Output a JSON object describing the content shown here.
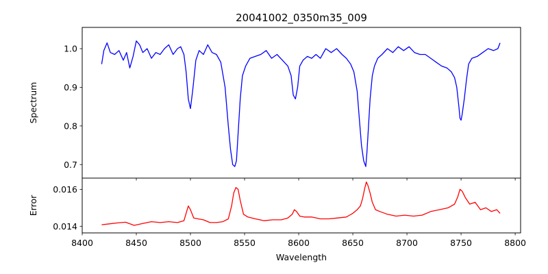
{
  "chart_data": [
    {
      "type": "line",
      "title": "20041002_0350m35_009",
      "xlabel": "",
      "ylabel": "Spectrum",
      "xlim": [
        8400,
        8805
      ],
      "ylim": [
        0.665,
        1.055
      ],
      "xticks": [
        8400,
        8450,
        8500,
        8550,
        8600,
        8650,
        8700,
        8750,
        8800
      ],
      "yticks": [
        0.7,
        0.8,
        0.9,
        1.0
      ],
      "ytick_labels": [
        "0.7",
        "0.8",
        "0.9",
        "1.0"
      ],
      "color": "#0000ff",
      "series": [
        {
          "x": [
            8418,
            8420,
            8423,
            8426,
            8430,
            8434,
            8438,
            8441,
            8444,
            8447,
            8450,
            8453,
            8456,
            8460,
            8464,
            8468,
            8472,
            8476,
            8480,
            8484,
            8488,
            8491,
            8494,
            8496,
            8498,
            8500,
            8502,
            8505,
            8508,
            8512,
            8516,
            8520,
            8524,
            8528,
            8532,
            8535,
            8537,
            8539,
            8541,
            8542.5,
            8544,
            8546,
            8548,
            8551,
            8555,
            8560,
            8565,
            8570,
            8575,
            8580,
            8585,
            8590,
            8593,
            8595,
            8597,
            8599,
            8601,
            8604,
            8608,
            8612,
            8616,
            8620,
            8625,
            8630,
            8635,
            8640,
            8644,
            8648,
            8651,
            8654,
            8656,
            8658,
            8660,
            8662,
            8663,
            8664.5,
            8666,
            8668,
            8670,
            8673,
            8677,
            8682,
            8687,
            8692,
            8697,
            8702,
            8707,
            8712,
            8717,
            8722,
            8727,
            8732,
            8737,
            8741,
            8744,
            8746,
            8748,
            8749,
            8750,
            8751,
            8753,
            8755,
            8757,
            8760,
            8765,
            8770,
            8775,
            8780,
            8784,
            8786
          ],
          "y": [
            0.96,
            0.995,
            1.015,
            0.99,
            0.985,
            0.995,
            0.97,
            0.99,
            0.95,
            0.98,
            1.02,
            1.01,
            0.99,
            1.0,
            0.975,
            0.99,
            0.985,
            1.0,
            1.01,
            0.985,
            1.0,
            1.005,
            0.985,
            0.94,
            0.87,
            0.845,
            0.89,
            0.97,
            0.995,
            0.985,
            1.01,
            0.99,
            0.985,
            0.965,
            0.9,
            0.8,
            0.74,
            0.7,
            0.695,
            0.71,
            0.78,
            0.87,
            0.93,
            0.955,
            0.975,
            0.98,
            0.985,
            0.995,
            0.975,
            0.985,
            0.97,
            0.955,
            0.93,
            0.88,
            0.87,
            0.9,
            0.955,
            0.97,
            0.98,
            0.975,
            0.985,
            0.975,
            1.0,
            0.99,
            1.0,
            0.985,
            0.975,
            0.96,
            0.94,
            0.89,
            0.82,
            0.75,
            0.71,
            0.695,
            0.73,
            0.8,
            0.87,
            0.93,
            0.955,
            0.975,
            0.985,
            1.0,
            0.99,
            1.005,
            0.995,
            1.005,
            0.99,
            0.985,
            0.985,
            0.975,
            0.965,
            0.955,
            0.95,
            0.94,
            0.925,
            0.9,
            0.85,
            0.82,
            0.815,
            0.83,
            0.87,
            0.92,
            0.96,
            0.975,
            0.98,
            0.99,
            1.0,
            0.995,
            1.0,
            1.015
          ]
        }
      ]
    },
    {
      "type": "line",
      "title": "",
      "xlabel": "Wavelength",
      "ylabel": "Error",
      "xlim": [
        8400,
        8805
      ],
      "ylim": [
        0.01364,
        0.01661
      ],
      "xticks": [
        8400,
        8450,
        8500,
        8550,
        8600,
        8650,
        8700,
        8750,
        8800
      ],
      "xtick_labels": [
        "8400",
        "8450",
        "8500",
        "8550",
        "8600",
        "8650",
        "8700",
        "8750",
        "8800"
      ],
      "yticks": [
        0.014,
        0.016
      ],
      "ytick_labels": [
        "0.014",
        "0.016"
      ],
      "color": "#ff0000",
      "series": [
        {
          "x": [
            8418,
            8425,
            8432,
            8440,
            8448,
            8456,
            8464,
            8472,
            8480,
            8488,
            8494,
            8496,
            8498,
            8500,
            8503,
            8507,
            8512,
            8518,
            8524,
            8530,
            8535,
            8538,
            8540,
            8542,
            8544,
            8546,
            8549,
            8553,
            8560,
            8568,
            8576,
            8584,
            8590,
            8594,
            8596,
            8598,
            8601,
            8605,
            8612,
            8620,
            8628,
            8636,
            8644,
            8650,
            8654,
            8657,
            8659,
            8661,
            8662.5,
            8664,
            8666,
            8668,
            8671,
            8675,
            8682,
            8690,
            8698,
            8706,
            8714,
            8722,
            8730,
            8738,
            8744,
            8747,
            8749,
            8751,
            8754,
            8758,
            8763,
            8768,
            8773,
            8778,
            8783,
            8786
          ],
          "y": [
            0.01408,
            0.01413,
            0.01418,
            0.01422,
            0.01405,
            0.01415,
            0.01425,
            0.0142,
            0.01425,
            0.0142,
            0.0143,
            0.0147,
            0.0151,
            0.0149,
            0.01445,
            0.0144,
            0.01435,
            0.0142,
            0.0142,
            0.01425,
            0.0144,
            0.0151,
            0.0158,
            0.0161,
            0.016,
            0.0154,
            0.01465,
            0.0145,
            0.0144,
            0.0143,
            0.01435,
            0.01435,
            0.01445,
            0.01465,
            0.0149,
            0.0148,
            0.01455,
            0.0145,
            0.0145,
            0.0144,
            0.0144,
            0.01445,
            0.0145,
            0.0147,
            0.0149,
            0.0151,
            0.0155,
            0.01605,
            0.0164,
            0.0162,
            0.0158,
            0.0153,
            0.0149,
            0.0148,
            0.01465,
            0.01455,
            0.0146,
            0.01455,
            0.0146,
            0.0148,
            0.0149,
            0.015,
            0.0152,
            0.0156,
            0.016,
            0.0159,
            0.01555,
            0.0152,
            0.0153,
            0.0149,
            0.015,
            0.0148,
            0.0149,
            0.0147
          ]
        }
      ]
    }
  ]
}
